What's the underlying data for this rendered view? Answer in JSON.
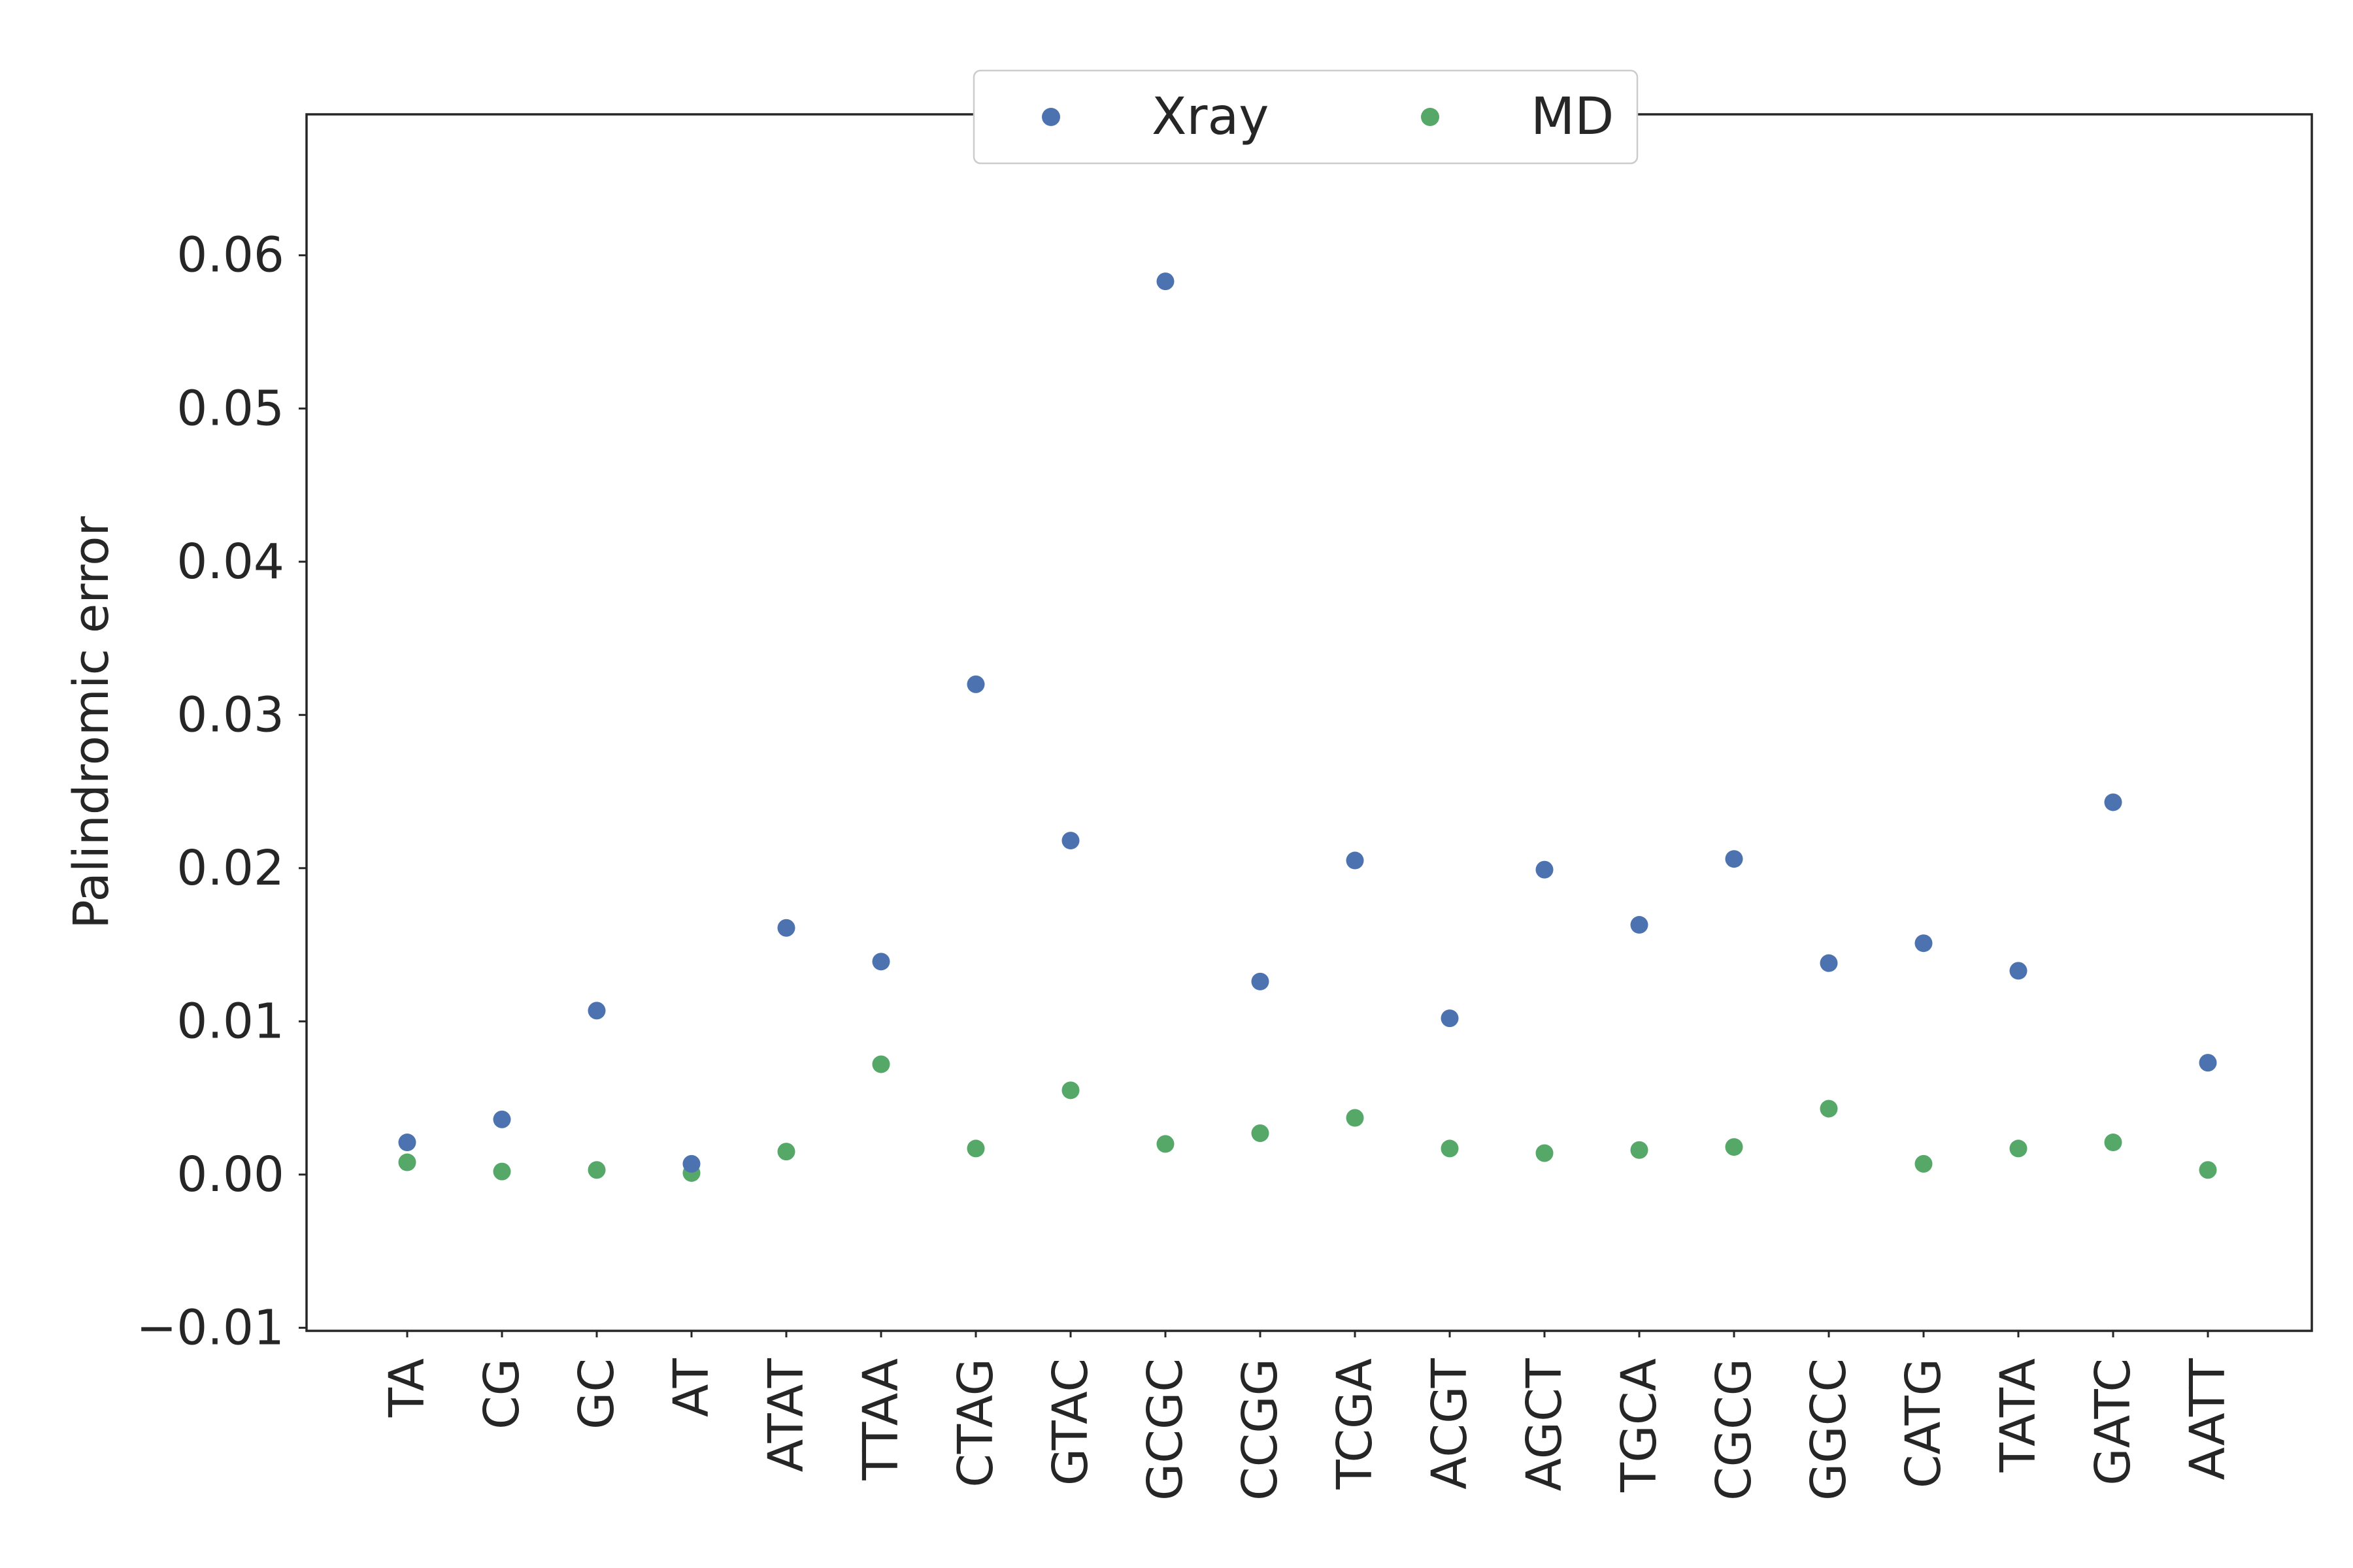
{
  "chart_data": {
    "type": "scatter",
    "title": "",
    "xlabel": "",
    "ylabel": "Palindromic error",
    "categories": [
      "TA",
      "CG",
      "GC",
      "AT",
      "ATAT",
      "TTAA",
      "CTAG",
      "GTAC",
      "GCGC",
      "CCGG",
      "TCGA",
      "ACGT",
      "AGCT",
      "TGCA",
      "CGCG",
      "GGCC",
      "CATG",
      "TATA",
      "GATC",
      "AATT"
    ],
    "series": [
      {
        "name": "Xray",
        "color": "#4c72b0",
        "values": [
          0.0021,
          0.0036,
          0.0107,
          0.0007,
          0.0161,
          0.0139,
          0.032,
          0.0218,
          0.0583,
          0.0126,
          0.0205,
          0.0102,
          0.0199,
          0.0163,
          0.0206,
          0.0138,
          0.0151,
          0.0133,
          0.0243,
          0.0073
        ]
      },
      {
        "name": "MD",
        "color": "#55a868",
        "values": [
          0.0008,
          0.0002,
          0.0003,
          0.0001,
          0.0015,
          0.0072,
          0.0017,
          0.0055,
          0.002,
          0.0027,
          0.0037,
          0.0017,
          0.0014,
          0.0016,
          0.0018,
          0.0043,
          0.0007,
          0.0017,
          0.0021,
          0.0003
        ]
      }
    ],
    "ylim": [
      -0.0102,
      0.0692
    ],
    "yticks": [
      -0.01,
      0.0,
      0.01,
      0.02,
      0.03,
      0.04,
      0.05,
      0.06
    ],
    "ytick_labels": [
      "−0.01",
      "0.00",
      "0.01",
      "0.02",
      "0.03",
      "0.04",
      "0.05",
      "0.06"
    ],
    "grid": false,
    "legend": {
      "placement": "top-center",
      "columns": 2,
      "entries": [
        "Xray",
        "MD"
      ]
    }
  }
}
